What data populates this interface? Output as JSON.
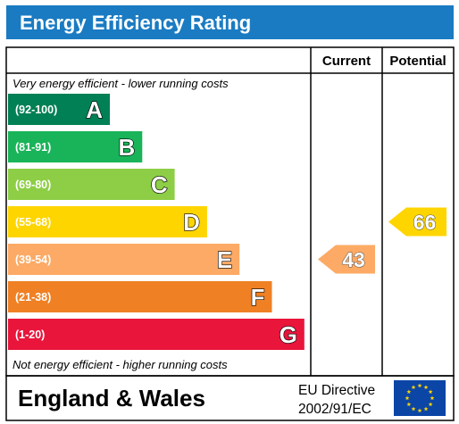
{
  "title": "Energy Efficiency Rating",
  "columns": {
    "current": "Current",
    "potential": "Potential"
  },
  "top_note": "Very energy efficient - lower running costs",
  "bottom_note": "Not energy efficient - higher running costs",
  "footer": {
    "region": "England & Wales",
    "directive_line1": "EU Directive",
    "directive_line2": "2002/91/EC"
  },
  "colors": {
    "header": "#1a7bc2",
    "A": "#008054",
    "B": "#19b459",
    "C": "#8dce46",
    "D": "#ffd500",
    "E": "#fcaa65",
    "F": "#ef8023",
    "G": "#e9153b",
    "eu_flag": "#0b45a6",
    "eu_stars": "#ffd500"
  },
  "chart_data": {
    "type": "bar",
    "categories": [
      "A",
      "B",
      "C",
      "D",
      "E",
      "F",
      "G"
    ],
    "ranges": [
      "(92-100)",
      "(81-91)",
      "(69-80)",
      "(55-68)",
      "(39-54)",
      "(21-38)",
      "(1-20)"
    ],
    "current": {
      "value": 43,
      "band": "E"
    },
    "potential": {
      "value": 66,
      "band": "D"
    }
  }
}
